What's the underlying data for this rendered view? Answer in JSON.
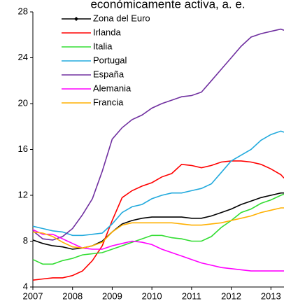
{
  "chart_data": {
    "type": "line",
    "title": "económicamente activa, a. e.",
    "x": [
      2007,
      2007.25,
      2007.5,
      2007.75,
      2008,
      2008.25,
      2008.5,
      2008.75,
      2009,
      2009.25,
      2009.5,
      2009.75,
      2010,
      2010.25,
      2010.5,
      2010.75,
      2011,
      2011.25,
      2011.5,
      2011.75,
      2012,
      2012.25,
      2012.5,
      2012.75,
      2013,
      2013.25,
      2013.33
    ],
    "series": [
      {
        "name": "Zona del Euro",
        "color": "#000000",
        "values": [
          8.1,
          7.8,
          7.6,
          7.5,
          7.3,
          7.4,
          7.6,
          8.0,
          8.8,
          9.5,
          9.8,
          10.0,
          10.1,
          10.1,
          10.1,
          10.1,
          10.0,
          10.0,
          10.2,
          10.5,
          10.8,
          11.2,
          11.5,
          11.8,
          12.0,
          12.2,
          12.2
        ]
      },
      {
        "name": "Irlanda",
        "color": "#ff0000",
        "values": [
          4.6,
          4.7,
          4.8,
          4.8,
          5.0,
          5.4,
          6.3,
          7.6,
          9.8,
          11.8,
          12.4,
          12.8,
          13.1,
          13.6,
          13.9,
          14.7,
          14.6,
          14.4,
          14.6,
          14.9,
          15.0,
          15.0,
          14.9,
          14.7,
          14.3,
          13.8,
          13.5
        ]
      },
      {
        "name": "Italia",
        "color": "#33dd33",
        "values": [
          6.4,
          6.0,
          6.0,
          6.3,
          6.5,
          6.8,
          6.9,
          7.0,
          7.3,
          7.6,
          7.9,
          8.2,
          8.5,
          8.5,
          8.3,
          8.2,
          8.0,
          8.0,
          8.4,
          9.2,
          9.8,
          10.5,
          10.8,
          11.3,
          11.6,
          12.0,
          12.1
        ]
      },
      {
        "name": "Portugal",
        "color": "#22aadd",
        "values": [
          9.3,
          9.1,
          8.9,
          8.8,
          8.5,
          8.5,
          8.6,
          8.7,
          9.5,
          10.5,
          11.0,
          11.2,
          11.7,
          12.0,
          12.2,
          12.2,
          12.4,
          12.6,
          13.0,
          14.0,
          15.0,
          15.5,
          16.0,
          16.8,
          17.3,
          17.6,
          17.5
        ]
      },
      {
        "name": "España",
        "color": "#7030a0",
        "values": [
          8.9,
          8.2,
          8.1,
          8.4,
          9.1,
          10.3,
          11.7,
          14.1,
          16.9,
          17.9,
          18.6,
          19.0,
          19.6,
          20.0,
          20.3,
          20.6,
          20.7,
          21.0,
          22.0,
          23.0,
          24.0,
          25.0,
          25.8,
          26.1,
          26.3,
          26.5,
          26.4
        ]
      },
      {
        "name": "Alemania",
        "color": "#ff00ff",
        "values": [
          9.0,
          8.6,
          8.6,
          8.2,
          7.8,
          7.4,
          7.3,
          7.3,
          7.6,
          7.8,
          8.0,
          7.9,
          7.7,
          7.3,
          7.0,
          6.7,
          6.4,
          6.1,
          5.9,
          5.7,
          5.6,
          5.5,
          5.4,
          5.4,
          5.4,
          5.4,
          5.4
        ]
      },
      {
        "name": "Francia",
        "color": "#ffb000",
        "values": [
          8.8,
          8.7,
          8.4,
          7.9,
          7.5,
          7.4,
          7.6,
          7.9,
          8.8,
          9.4,
          9.6,
          9.6,
          9.6,
          9.6,
          9.6,
          9.5,
          9.4,
          9.4,
          9.5,
          9.6,
          9.8,
          10.0,
          10.2,
          10.5,
          10.7,
          10.9,
          10.9
        ]
      }
    ],
    "xlim": [
      2007,
      2013.33
    ],
    "xticks": [
      2007,
      2008,
      2009,
      2010,
      2011,
      2012,
      2013
    ],
    "ylim": [
      4,
      28
    ],
    "yticks": [
      4,
      8,
      12,
      16,
      20,
      24,
      28
    ],
    "grid": false,
    "legend": "upper left"
  }
}
